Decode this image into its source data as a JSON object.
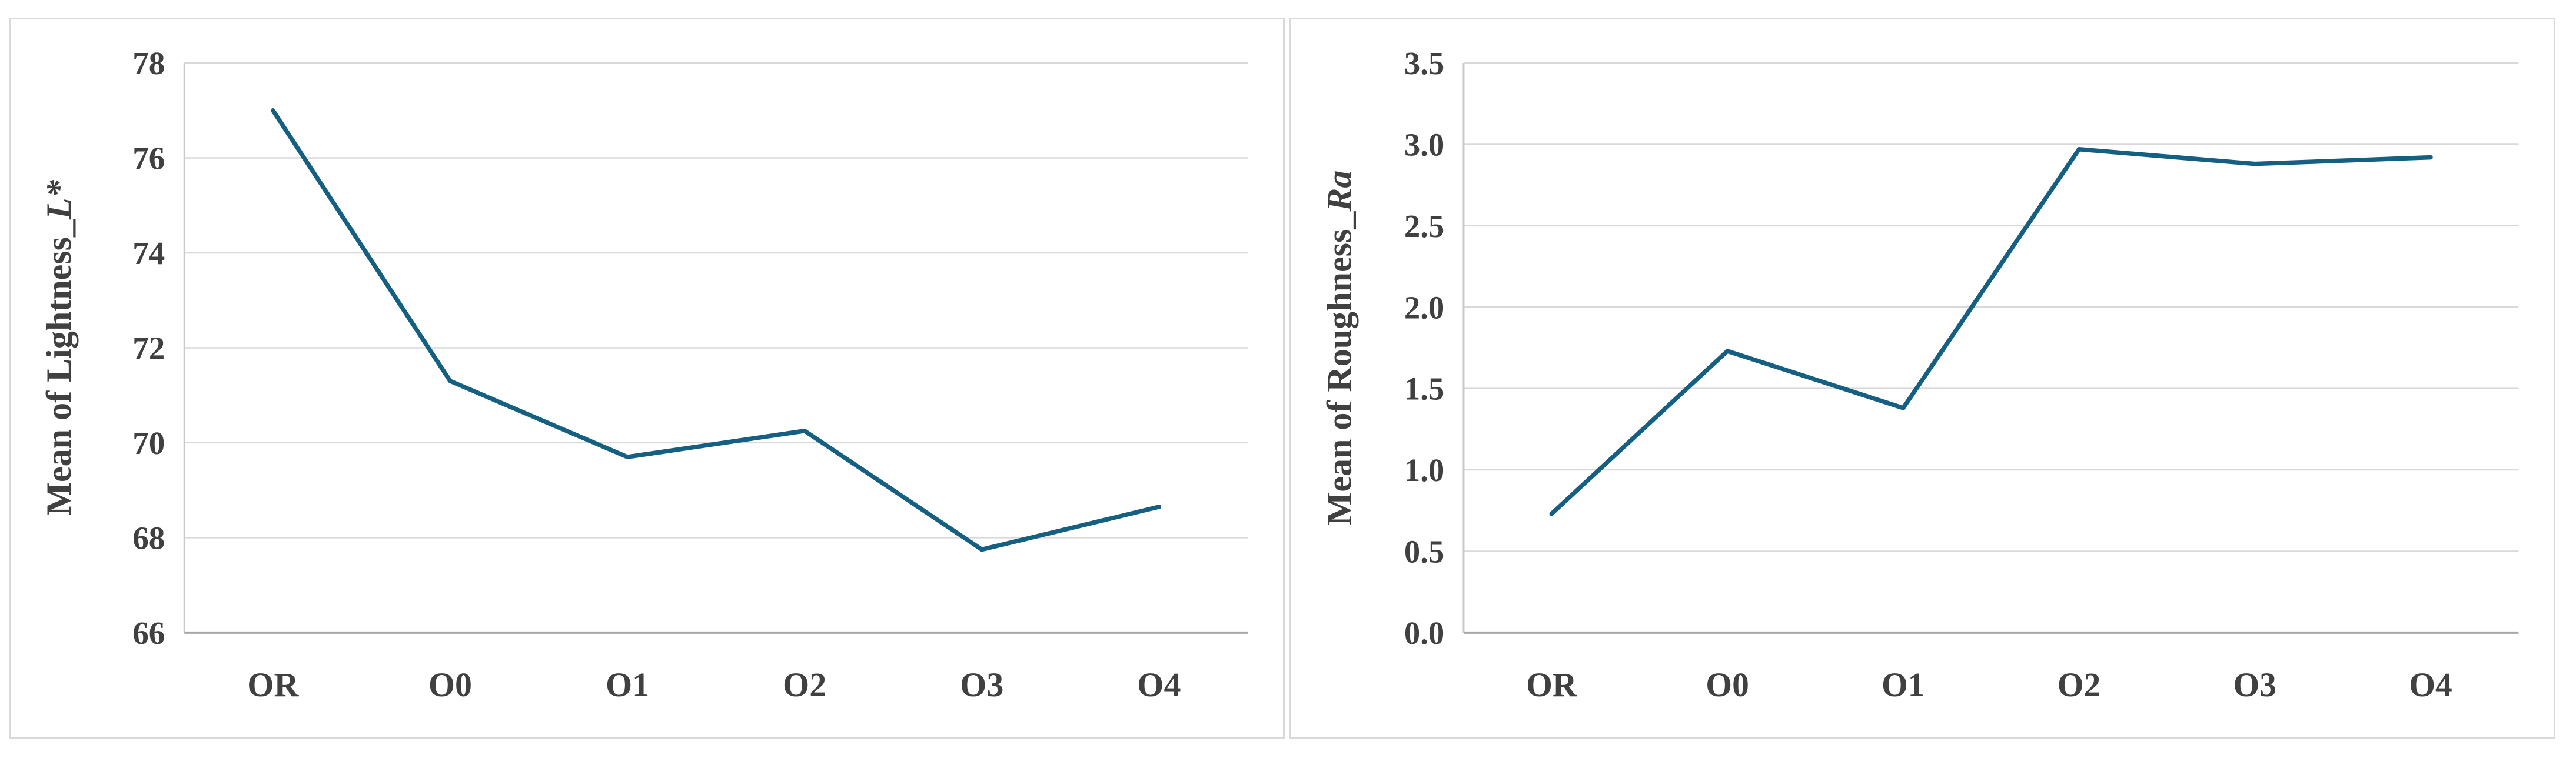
{
  "page": {
    "background_color": "#ffffff",
    "panel_border_color": "#d9d9d9"
  },
  "chart_data": [
    {
      "type": "line",
      "title": "",
      "xlabel": "",
      "ylabel_main": "Mean of Lightness_",
      "ylabel_italic": "L*",
      "categories": [
        "OR",
        "O0",
        "O1",
        "O2",
        "O3",
        "O4"
      ],
      "series": [
        {
          "name": "Mean of Lightness_L*",
          "values": [
            77.0,
            71.3,
            69.7,
            70.25,
            67.75,
            68.65
          ]
        }
      ],
      "ylim": [
        66,
        78
      ],
      "ytick_step": 2,
      "ytick_decimals": 0,
      "grid": true,
      "legend_position": "none",
      "line_color": "#156082",
      "grid_color": "#d9d9d9",
      "axis_line_color": "#a8a8a8",
      "y_axis_line_color": "#c8c8c8",
      "text_color": "#404040"
    },
    {
      "type": "line",
      "title": "",
      "xlabel": "",
      "ylabel_main": "Mean of Roughness_",
      "ylabel_italic": "Ra",
      "categories": [
        "OR",
        "O0",
        "O1",
        "O2",
        "O3",
        "O4"
      ],
      "series": [
        {
          "name": "Mean of Roughness_Ra",
          "values": [
            0.73,
            1.73,
            1.38,
            2.97,
            2.88,
            2.92
          ]
        }
      ],
      "ylim": [
        0.0,
        3.5
      ],
      "ytick_step": 0.5,
      "ytick_decimals": 1,
      "grid": true,
      "legend_position": "none",
      "line_color": "#156082",
      "grid_color": "#d9d9d9",
      "axis_line_color": "#a8a8a8",
      "y_axis_line_color": "#c8c8c8",
      "text_color": "#404040"
    }
  ]
}
